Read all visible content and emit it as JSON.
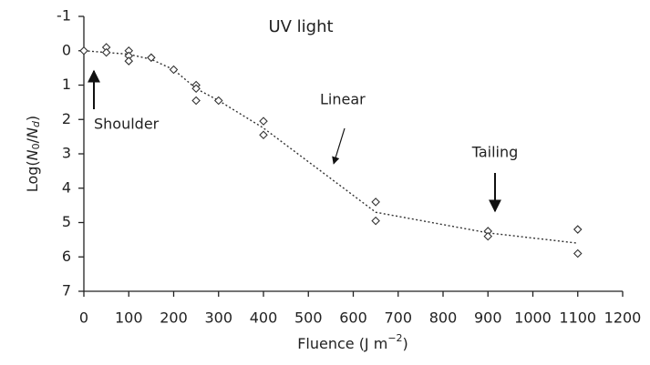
{
  "chart_data": {
    "type": "scatter",
    "title": "UV light",
    "xlabel": [
      "Fluence (J m",
      "−2",
      ")"
    ],
    "ylabel": [
      "Log(",
      "N",
      "0",
      "/",
      "N",
      "d",
      ")"
    ],
    "points": {
      "x": [
        0,
        50,
        50,
        100,
        100,
        100,
        150,
        200,
        250,
        250,
        250,
        300,
        400,
        400,
        650,
        650,
        900,
        900,
        1100,
        1100
      ],
      "values": [
        0,
        -0.1,
        0.05,
        0.0,
        0.15,
        0.3,
        0.2,
        0.55,
        1.0,
        1.1,
        1.45,
        1.45,
        2.05,
        2.45,
        4.4,
        4.95,
        5.25,
        5.4,
        5.2,
        5.9
      ]
    },
    "trend": {
      "x": [
        0,
        100,
        150,
        200,
        250,
        300,
        400,
        650,
        900,
        1100
      ],
      "values": [
        0,
        0.1,
        0.25,
        0.55,
        1.1,
        1.45,
        2.25,
        4.7,
        5.3,
        5.6
      ]
    },
    "color": "#333333",
    "annotations": [
      "Shoulder",
      "Linear",
      "Tailing"
    ],
    "xlim": [
      0,
      1200
    ],
    "xticks": [
      0,
      100,
      200,
      300,
      400,
      500,
      600,
      700,
      800,
      900,
      1000,
      1100,
      1200
    ],
    "ylim": [
      -1,
      7
    ],
    "yticks": [
      -1,
      0,
      1,
      2,
      3,
      4,
      5,
      6,
      7
    ],
    "y_inverted": true
  }
}
